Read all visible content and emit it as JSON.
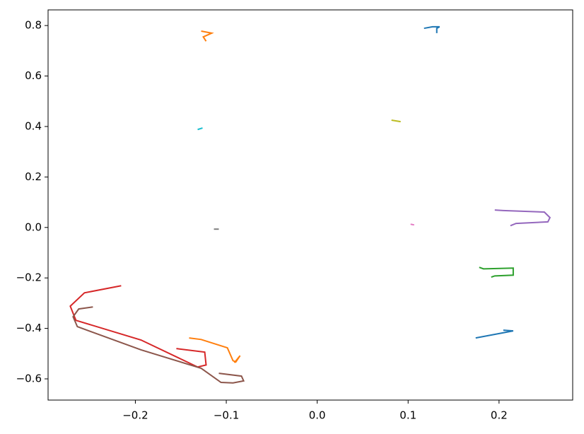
{
  "chart_data": {
    "type": "line",
    "xlim": [
      -0.296,
      0.281
    ],
    "ylim": [
      -0.684,
      0.862
    ],
    "xticks": [
      -0.2,
      -0.1,
      {
        "value": 0,
        "label": "0.0"
      },
      0.1,
      0.2
    ],
    "yticks": [
      {
        "value": -0.6,
        "label": "−0.6"
      },
      {
        "value": -0.4,
        "label": "−0.4"
      },
      {
        "value": -0.2,
        "label": "−0.2"
      },
      {
        "value": 0,
        "label": "0.0"
      },
      0.2,
      0.4,
      0.6,
      0.8
    ],
    "xtick_labels": [
      "−0.2",
      "−0.1",
      "0.0",
      "0.1",
      "0.2"
    ],
    "series": [
      {
        "color": "#1f77b4",
        "x": [
          0.1175,
          0.1268,
          0.1346,
          0.1315,
          0.1315
        ],
        "values": [
          0.789,
          0.795,
          0.795,
          0.789,
          0.77
        ]
      },
      {
        "color": "#ff7f0e",
        "x": [
          -0.1276,
          -0.116,
          -0.1253,
          -0.1222
        ],
        "values": [
          0.778,
          0.77,
          0.755,
          0.738
        ]
      },
      {
        "color": "#2ca02c",
        "x": [
          0.1782,
          0.1829,
          0.2156,
          0.2156,
          0.1953,
          0.1914
        ],
        "values": [
          -0.158,
          -0.164,
          -0.161,
          -0.189,
          -0.192,
          -0.197
        ]
      },
      {
        "color": "#d62728",
        "x": [
          -0.2156,
          -0.256,
          -0.2716,
          -0.2654,
          -0.1938,
          -0.1315,
          -0.1222,
          -0.1237,
          -0.1549
        ],
        "values": [
          -0.231,
          -0.259,
          -0.312,
          -0.368,
          -0.446,
          -0.553,
          -0.545,
          -0.494,
          -0.48
        ]
      },
      {
        "color": "#9467bd",
        "x": [
          0.1953,
          0.2047,
          0.2498,
          0.256,
          0.2537,
          0.2187,
          0.2125
        ],
        "values": [
          0.069,
          0.067,
          0.061,
          0.039,
          0.022,
          0.016,
          0.007
        ]
      },
      {
        "color": "#8c564b",
        "x": [
          -0.2467,
          -0.2623,
          -0.2685,
          -0.2638,
          -0.1938,
          -0.1276,
          -0.1058,
          -0.0926,
          -0.0809,
          -0.0833,
          -0.1082
        ],
        "values": [
          -0.315,
          -0.323,
          -0.354,
          -0.393,
          -0.485,
          -0.558,
          -0.614,
          -0.616,
          -0.608,
          -0.589,
          -0.578
        ]
      },
      {
        "color": "#e377c2",
        "x": [
          0.1027,
          0.1066
        ],
        "values": [
          0.0129,
          0.0101
        ]
      },
      {
        "color": "#7f7f7f",
        "x": [
          -0.1136,
          -0.1082
        ],
        "values": [
          -0.0067,
          -0.0067
        ]
      },
      {
        "color": "#bcbd22",
        "x": [
          0.0817,
          0.0918
        ],
        "values": [
          0.425,
          0.419
        ]
      },
      {
        "color": "#17becf",
        "x": [
          -0.1315,
          -0.1261
        ],
        "values": [
          0.388,
          0.394
        ]
      },
      {
        "color": "#1f77b4",
        "x": [
          0.1743,
          0.2156,
          0.2047
        ],
        "values": [
          -0.438,
          -0.41,
          -0.407
        ]
      },
      {
        "color": "#ff7f0e",
        "x": [
          -0.1409,
          -0.1276,
          -0.0988,
          -0.0926,
          -0.0895,
          -0.0848,
          -0.0911
        ],
        "values": [
          -0.438,
          -0.444,
          -0.477,
          -0.528,
          -0.533,
          -0.508,
          -0.536
        ]
      }
    ]
  }
}
